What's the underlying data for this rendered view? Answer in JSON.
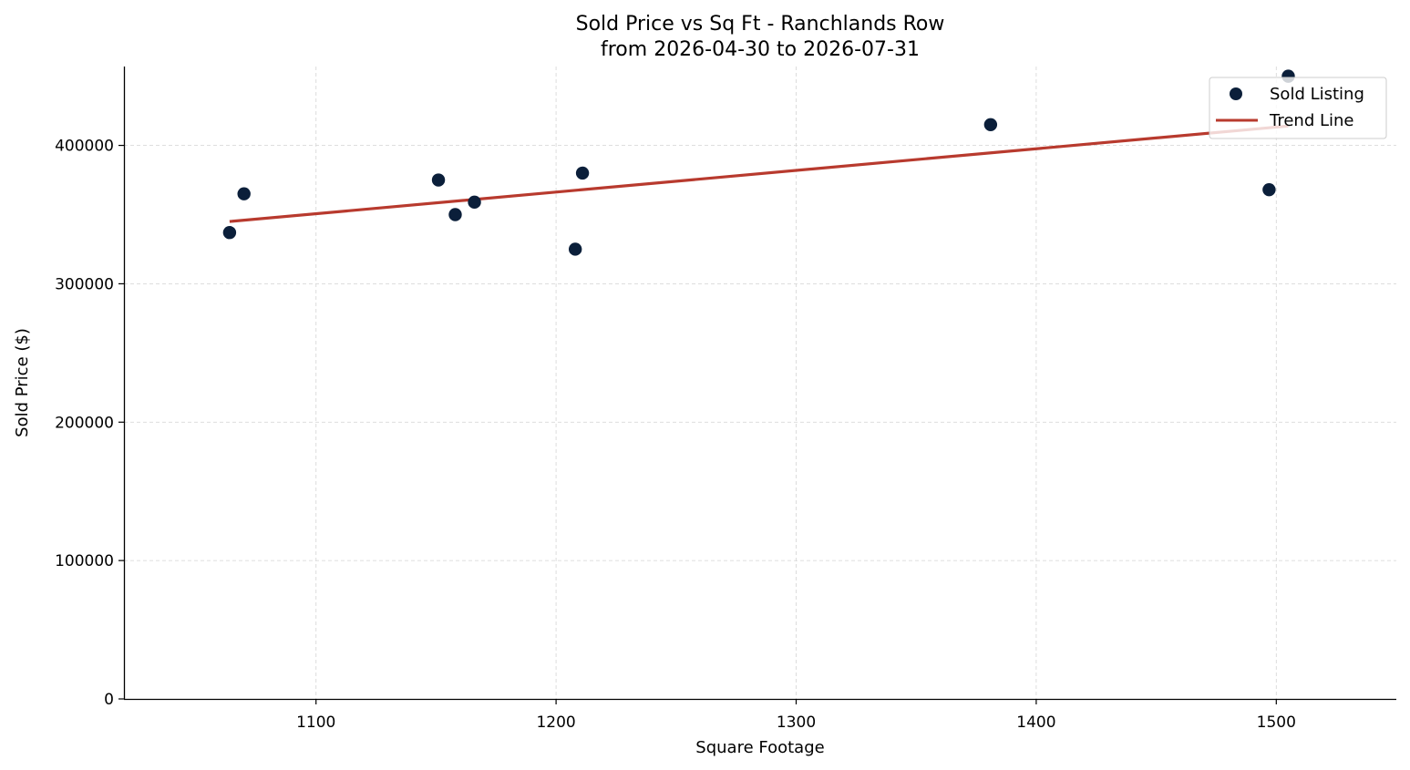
{
  "chart_data": {
    "type": "scatter",
    "title": "Sold Price vs Sq Ft - Ranchlands Row",
    "subtitle": "from 2026-04-30 to 2026-07-31",
    "xlabel": "Square Footage",
    "ylabel": "Sold Price ($)",
    "xlim": [
      1020,
      1550
    ],
    "ylim": [
      0,
      457000
    ],
    "xticks": [
      1100,
      1200,
      1300,
      1400,
      1500
    ],
    "yticks": [
      0,
      100000,
      200000,
      300000,
      400000
    ],
    "grid": true,
    "legend_position": "top-right",
    "series": [
      {
        "name": "Sold Listing",
        "kind": "scatter",
        "color": "#0b1f3a",
        "points": [
          {
            "x": 1064,
            "y": 337000
          },
          {
            "x": 1070,
            "y": 365000
          },
          {
            "x": 1151,
            "y": 375000
          },
          {
            "x": 1158,
            "y": 350000
          },
          {
            "x": 1166,
            "y": 359000
          },
          {
            "x": 1208,
            "y": 325000
          },
          {
            "x": 1211,
            "y": 380000
          },
          {
            "x": 1381,
            "y": 415000
          },
          {
            "x": 1497,
            "y": 368000
          },
          {
            "x": 1505,
            "y": 450000
          }
        ]
      },
      {
        "name": "Trend Line",
        "kind": "line",
        "color": "#b83a2e",
        "points": [
          {
            "x": 1064,
            "y": 345000
          },
          {
            "x": 1505,
            "y": 414000
          }
        ]
      }
    ]
  }
}
